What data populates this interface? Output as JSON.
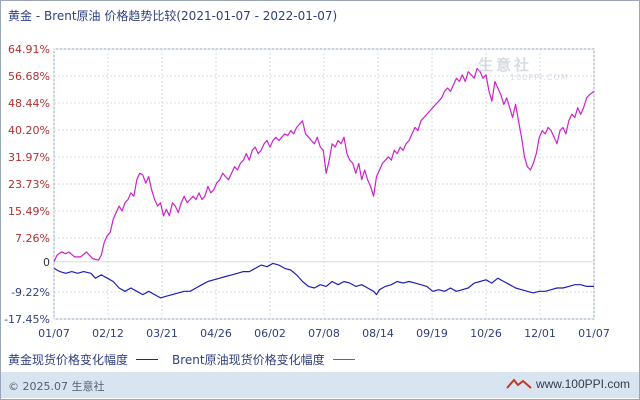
{
  "title": "黄金 - Brent原油 价格趋势比较(2021-01-07 - 2022-01-07)",
  "watermark": {
    "name": "生意社",
    "url": "100PPI.COM"
  },
  "legend": [
    {
      "label": "黄金现货价格变化幅度",
      "color": "#1f1fb4"
    },
    {
      "label": "Brent原油现货价格变化幅度",
      "color": "#cc22cc"
    }
  ],
  "footer": {
    "copyright": "© 2025.07 生意社",
    "site": "www.100PPI.com"
  },
  "chart_data": {
    "type": "line",
    "x_tick_labels": [
      "01/07",
      "02/12",
      "03/21",
      "04/26",
      "06/02",
      "07/08",
      "08/14",
      "09/19",
      "10/26",
      "12/01",
      "01/07"
    ],
    "y_tick_labels": [
      "64.91%",
      "56.68%",
      "48.44%",
      "40.20%",
      "31.97%",
      "23.73%",
      "15.49%",
      "7.26%",
      "0",
      "-9.22%",
      "-17.45%"
    ],
    "y_tick_values": [
      64.91,
      56.68,
      48.44,
      40.2,
      31.97,
      23.73,
      15.49,
      7.26,
      0,
      -9.22,
      -17.45
    ],
    "y_tick_colors": [
      "#b03030",
      "#b03030",
      "#b03030",
      "#b03030",
      "#b03030",
      "#b03030",
      "#b03030",
      "#b03030",
      "#333333",
      "#2f3f7f",
      "#2f3f7f"
    ],
    "ylim": [
      -17.45,
      64.91
    ],
    "x_range": [
      0,
      365
    ],
    "grid": true,
    "series": [
      {
        "name": "黄金现货价格变化幅度",
        "color": "#1f1fb4",
        "points": [
          [
            0,
            -2
          ],
          [
            4,
            -3
          ],
          [
            8,
            -3.5
          ],
          [
            12,
            -3
          ],
          [
            16,
            -3.5
          ],
          [
            20,
            -3
          ],
          [
            25,
            -3.5
          ],
          [
            28,
            -5
          ],
          [
            32,
            -4
          ],
          [
            36,
            -5
          ],
          [
            40,
            -6
          ],
          [
            44,
            -8
          ],
          [
            48,
            -9
          ],
          [
            52,
            -8
          ],
          [
            56,
            -9
          ],
          [
            60,
            -10
          ],
          [
            64,
            -9
          ],
          [
            68,
            -10
          ],
          [
            72,
            -11
          ],
          [
            76,
            -10.5
          ],
          [
            80,
            -10
          ],
          [
            84,
            -9.5
          ],
          [
            88,
            -9
          ],
          [
            92,
            -9
          ],
          [
            96,
            -8
          ],
          [
            100,
            -7
          ],
          [
            104,
            -6
          ],
          [
            108,
            -5.5
          ],
          [
            112,
            -5
          ],
          [
            116,
            -4.5
          ],
          [
            120,
            -4
          ],
          [
            124,
            -3.5
          ],
          [
            128,
            -3
          ],
          [
            132,
            -3
          ],
          [
            136,
            -2
          ],
          [
            140,
            -1
          ],
          [
            144,
            -1.5
          ],
          [
            148,
            -0.5
          ],
          [
            152,
            -1
          ],
          [
            156,
            -2
          ],
          [
            160,
            -2.5
          ],
          [
            164,
            -4
          ],
          [
            168,
            -6
          ],
          [
            172,
            -7.5
          ],
          [
            176,
            -8
          ],
          [
            180,
            -7
          ],
          [
            184,
            -7.5
          ],
          [
            188,
            -6
          ],
          [
            192,
            -7
          ],
          [
            196,
            -6
          ],
          [
            200,
            -6.5
          ],
          [
            204,
            -7.5
          ],
          [
            208,
            -7
          ],
          [
            212,
            -8
          ],
          [
            216,
            -9
          ],
          [
            218,
            -10
          ],
          [
            220,
            -8.5
          ],
          [
            224,
            -7.5
          ],
          [
            228,
            -7
          ],
          [
            232,
            -6
          ],
          [
            236,
            -6.5
          ],
          [
            240,
            -6
          ],
          [
            244,
            -6.5
          ],
          [
            248,
            -7
          ],
          [
            252,
            -7.5
          ],
          [
            256,
            -9
          ],
          [
            260,
            -8.5
          ],
          [
            264,
            -9
          ],
          [
            268,
            -8
          ],
          [
            272,
            -9
          ],
          [
            276,
            -8.5
          ],
          [
            280,
            -8
          ],
          [
            284,
            -6.5
          ],
          [
            288,
            -6
          ],
          [
            292,
            -5.5
          ],
          [
            296,
            -6.5
          ],
          [
            300,
            -5
          ],
          [
            304,
            -6
          ],
          [
            308,
            -7
          ],
          [
            312,
            -8
          ],
          [
            316,
            -8.5
          ],
          [
            320,
            -9
          ],
          [
            324,
            -9.5
          ],
          [
            328,
            -9
          ],
          [
            332,
            -9
          ],
          [
            336,
            -8.5
          ],
          [
            340,
            -8
          ],
          [
            344,
            -8
          ],
          [
            348,
            -7.5
          ],
          [
            352,
            -7
          ],
          [
            356,
            -7
          ],
          [
            360,
            -7.5
          ],
          [
            365,
            -7.5
          ]
        ]
      },
      {
        "name": "Brent原油现货价格变化幅度",
        "color": "#cc22cc",
        "points": [
          [
            0,
            0
          ],
          [
            2,
            2
          ],
          [
            5,
            3
          ],
          [
            8,
            2.5
          ],
          [
            10,
            3
          ],
          [
            14,
            1.5
          ],
          [
            18,
            1.5
          ],
          [
            22,
            3
          ],
          [
            26,
            1
          ],
          [
            30,
            0.5
          ],
          [
            32,
            2
          ],
          [
            34,
            6
          ],
          [
            36,
            8
          ],
          [
            38,
            9
          ],
          [
            40,
            13
          ],
          [
            42,
            15
          ],
          [
            44,
            17
          ],
          [
            46,
            15.5
          ],
          [
            48,
            18
          ],
          [
            50,
            19
          ],
          [
            52,
            21
          ],
          [
            54,
            20
          ],
          [
            56,
            25
          ],
          [
            58,
            27
          ],
          [
            60,
            26.5
          ],
          [
            62,
            24
          ],
          [
            64,
            26
          ],
          [
            66,
            22
          ],
          [
            68,
            19
          ],
          [
            70,
            17
          ],
          [
            72,
            18
          ],
          [
            74,
            14
          ],
          [
            76,
            16
          ],
          [
            78,
            14
          ],
          [
            80,
            18
          ],
          [
            82,
            17
          ],
          [
            84,
            15
          ],
          [
            86,
            18
          ],
          [
            88,
            20
          ],
          [
            90,
            18
          ],
          [
            92,
            19
          ],
          [
            94,
            20
          ],
          [
            96,
            19
          ],
          [
            98,
            21
          ],
          [
            100,
            19
          ],
          [
            102,
            20
          ],
          [
            104,
            23
          ],
          [
            106,
            21
          ],
          [
            108,
            22
          ],
          [
            110,
            24
          ],
          [
            112,
            25
          ],
          [
            114,
            27
          ],
          [
            116,
            26
          ],
          [
            118,
            25
          ],
          [
            120,
            27
          ],
          [
            122,
            29
          ],
          [
            124,
            28
          ],
          [
            126,
            30
          ],
          [
            128,
            31
          ],
          [
            130,
            33
          ],
          [
            132,
            31
          ],
          [
            134,
            34
          ],
          [
            136,
            35
          ],
          [
            138,
            33
          ],
          [
            140,
            34
          ],
          [
            142,
            36
          ],
          [
            144,
            37
          ],
          [
            146,
            35
          ],
          [
            148,
            37
          ],
          [
            150,
            38
          ],
          [
            152,
            37
          ],
          [
            154,
            38
          ],
          [
            156,
            39
          ],
          [
            158,
            38.5
          ],
          [
            160,
            40
          ],
          [
            162,
            39
          ],
          [
            164,
            41
          ],
          [
            166,
            42
          ],
          [
            168,
            43
          ],
          [
            170,
            39
          ],
          [
            172,
            38
          ],
          [
            174,
            37
          ],
          [
            176,
            36
          ],
          [
            178,
            38
          ],
          [
            180,
            35
          ],
          [
            182,
            34
          ],
          [
            184,
            27
          ],
          [
            186,
            31
          ],
          [
            188,
            36
          ],
          [
            190,
            35
          ],
          [
            192,
            37
          ],
          [
            194,
            36
          ],
          [
            196,
            38
          ],
          [
            198,
            33
          ],
          [
            200,
            31
          ],
          [
            202,
            30
          ],
          [
            204,
            27
          ],
          [
            206,
            30
          ],
          [
            208,
            25
          ],
          [
            210,
            28
          ],
          [
            212,
            25
          ],
          [
            214,
            23
          ],
          [
            216,
            20
          ],
          [
            218,
            26
          ],
          [
            220,
            28
          ],
          [
            222,
            30
          ],
          [
            224,
            31
          ],
          [
            226,
            32
          ],
          [
            228,
            31
          ],
          [
            230,
            34
          ],
          [
            232,
            33
          ],
          [
            234,
            35
          ],
          [
            236,
            34
          ],
          [
            238,
            36
          ],
          [
            240,
            37
          ],
          [
            242,
            39
          ],
          [
            244,
            41
          ],
          [
            246,
            40
          ],
          [
            248,
            43
          ],
          [
            250,
            44
          ],
          [
            252,
            45
          ],
          [
            254,
            46
          ],
          [
            256,
            47
          ],
          [
            258,
            48
          ],
          [
            260,
            49
          ],
          [
            262,
            50
          ],
          [
            264,
            52
          ],
          [
            266,
            53
          ],
          [
            268,
            52
          ],
          [
            270,
            54
          ],
          [
            272,
            56
          ],
          [
            274,
            55
          ],
          [
            276,
            57
          ],
          [
            278,
            55
          ],
          [
            280,
            58
          ],
          [
            282,
            57
          ],
          [
            284,
            56
          ],
          [
            286,
            59
          ],
          [
            288,
            58
          ],
          [
            290,
            56
          ],
          [
            292,
            57
          ],
          [
            294,
            52
          ],
          [
            296,
            49
          ],
          [
            298,
            55
          ],
          [
            300,
            53
          ],
          [
            302,
            51
          ],
          [
            304,
            48
          ],
          [
            306,
            50
          ],
          [
            308,
            47
          ],
          [
            310,
            44
          ],
          [
            312,
            48
          ],
          [
            314,
            43
          ],
          [
            316,
            38
          ],
          [
            318,
            32
          ],
          [
            320,
            29
          ],
          [
            322,
            28
          ],
          [
            324,
            30
          ],
          [
            326,
            33
          ],
          [
            328,
            38
          ],
          [
            330,
            40
          ],
          [
            332,
            39
          ],
          [
            334,
            41
          ],
          [
            336,
            40
          ],
          [
            338,
            38
          ],
          [
            340,
            36
          ],
          [
            342,
            40
          ],
          [
            344,
            41
          ],
          [
            346,
            39
          ],
          [
            348,
            43
          ],
          [
            350,
            45
          ],
          [
            352,
            44
          ],
          [
            354,
            47
          ],
          [
            356,
            45
          ],
          [
            358,
            47
          ],
          [
            360,
            50
          ],
          [
            362,
            51
          ],
          [
            365,
            52
          ]
        ]
      }
    ]
  }
}
